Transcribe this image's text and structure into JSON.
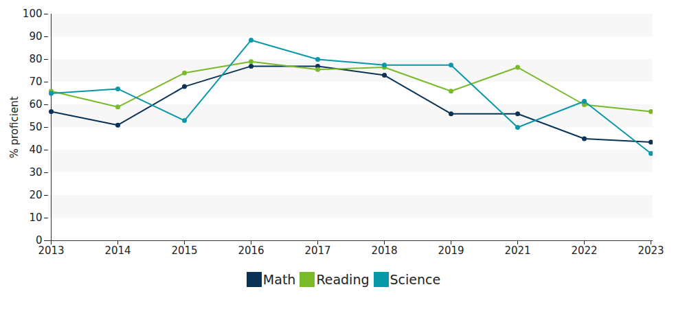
{
  "chart_data": {
    "type": "line",
    "y_label": "% proficient",
    "categories": [
      "2013",
      "2014",
      "2015",
      "2016",
      "2017",
      "2018",
      "2019",
      "2021",
      "2022",
      "2023"
    ],
    "series": [
      {
        "name": "Math",
        "color": "#0a3255",
        "values": [
          57,
          51,
          68,
          77,
          77,
          73,
          56,
          56,
          45,
          43.5
        ]
      },
      {
        "name": "Reading",
        "color": "#7ab929",
        "values": [
          66,
          59,
          74,
          79,
          75.5,
          76.5,
          66,
          76.5,
          60,
          57
        ]
      },
      {
        "name": "Science",
        "color": "#0898a8",
        "values": [
          65,
          67,
          53,
          88.5,
          80,
          77.5,
          77.5,
          50,
          61.5,
          38.5
        ]
      }
    ],
    "ylim": [
      0,
      100
    ],
    "yticks": [
      0,
      10,
      20,
      30,
      40,
      50,
      60,
      70,
      80,
      90,
      100
    ],
    "grid": true,
    "legend": "bottom",
    "marker": "circle",
    "line_style": "solid"
  }
}
